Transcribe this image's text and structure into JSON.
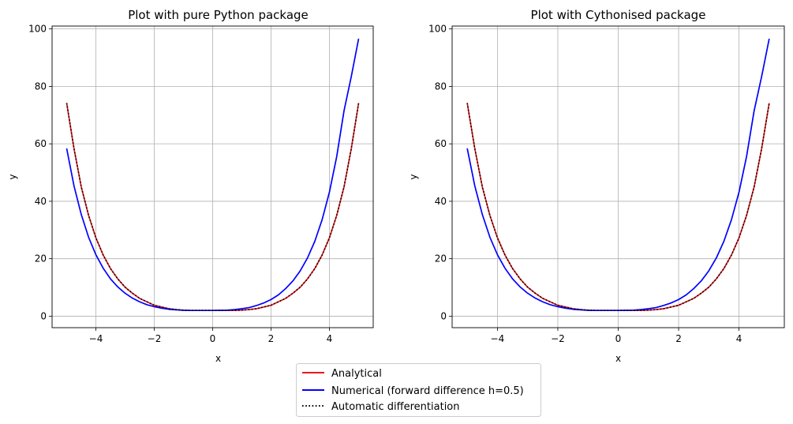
{
  "chart_data": [
    {
      "type": "line",
      "title": "Plot with pure Python package",
      "xlabel": "x",
      "ylabel": "y",
      "xlim": [
        -5.5,
        5.5
      ],
      "ylim": [
        -4,
        101
      ],
      "xticks": [
        -4,
        -2,
        0,
        2,
        4
      ],
      "yticks": [
        0,
        20,
        40,
        60,
        80,
        100
      ],
      "grid": true,
      "series": [
        {
          "name": "Analytical",
          "color": "#e41a1c",
          "style": "solid",
          "x": [
            -5,
            -4.75,
            -4.5,
            -4.25,
            -4,
            -3.75,
            -3.5,
            -3.25,
            -3,
            -2.75,
            -2.5,
            -2.25,
            -2,
            -1.75,
            -1.5,
            -1.25,
            -1,
            -0.75,
            -0.5,
            -0.25,
            0,
            0.25,
            0.5,
            0.75,
            1,
            1.25,
            1.5,
            1.75,
            2,
            2.25,
            2.5,
            2.75,
            3,
            3.25,
            3.5,
            3.75,
            4,
            4.25,
            4.5,
            4.75,
            5
          ],
          "y": [
            74.2,
            58.4,
            45.0,
            35.1,
            27.3,
            21.3,
            16.6,
            13.0,
            10.1,
            8.0,
            6.2,
            5.0,
            3.8,
            3.2,
            2.6,
            2.3,
            2.1,
            2.0,
            2.0,
            2.0,
            2.0,
            2.0,
            2.0,
            2.0,
            2.1,
            2.3,
            2.6,
            3.2,
            3.8,
            5.0,
            6.2,
            8.0,
            10.1,
            13.0,
            16.6,
            21.3,
            27.3,
            35.1,
            45.0,
            58.4,
            74.2
          ]
        },
        {
          "name": "Numerical (forward difference h=0.5)",
          "color": "#0000ff",
          "style": "solid",
          "x": [
            -5,
            -4.75,
            -4.5,
            -4.25,
            -4,
            -3.75,
            -3.5,
            -3.25,
            -3,
            -2.75,
            -2.5,
            -2.25,
            -2,
            -1.75,
            -1.5,
            -1.25,
            -1,
            -0.75,
            -0.5,
            -0.25,
            0,
            0.25,
            0.5,
            0.75,
            1,
            1.25,
            1.5,
            1.75,
            2,
            2.25,
            2.5,
            2.75,
            3,
            3.25,
            3.5,
            3.75,
            4,
            4.25,
            4.5,
            4.75,
            5
          ],
          "y": [
            58.4,
            45.4,
            35.4,
            27.5,
            21.4,
            16.7,
            13.0,
            10.2,
            8.0,
            6.3,
            5.0,
            4.0,
            3.3,
            2.8,
            2.4,
            2.2,
            2.05,
            2.0,
            2.0,
            2.0,
            2.0,
            2.05,
            2.1,
            2.3,
            2.6,
            3.0,
            3.7,
            4.6,
            5.8,
            7.4,
            9.6,
            12.3,
            15.8,
            20.3,
            26.1,
            33.6,
            43.2,
            55.6,
            71.5,
            83.5,
            96.6
          ]
        },
        {
          "name": "Automatic differentiation",
          "color": "#000000",
          "style": "dotted",
          "x": [
            -5,
            -4.75,
            -4.5,
            -4.25,
            -4,
            -3.75,
            -3.5,
            -3.25,
            -3,
            -2.75,
            -2.5,
            -2.25,
            -2,
            -1.75,
            -1.5,
            -1.25,
            -1,
            -0.75,
            -0.5,
            -0.25,
            0,
            0.25,
            0.5,
            0.75,
            1,
            1.25,
            1.5,
            1.75,
            2,
            2.25,
            2.5,
            2.75,
            3,
            3.25,
            3.5,
            3.75,
            4,
            4.25,
            4.5,
            4.75,
            5
          ],
          "y": [
            74.2,
            58.4,
            45.0,
            35.1,
            27.3,
            21.3,
            16.6,
            13.0,
            10.1,
            8.0,
            6.2,
            5.0,
            3.8,
            3.2,
            2.6,
            2.3,
            2.1,
            2.0,
            2.0,
            2.0,
            2.0,
            2.0,
            2.0,
            2.0,
            2.1,
            2.3,
            2.6,
            3.2,
            3.8,
            5.0,
            6.2,
            8.0,
            10.1,
            13.0,
            16.6,
            21.3,
            27.3,
            35.1,
            45.0,
            58.4,
            74.2
          ]
        }
      ]
    },
    {
      "type": "line",
      "title": "Plot with Cythonised package",
      "xlabel": "x",
      "ylabel": "y",
      "xlim": [
        -5.5,
        5.5
      ],
      "ylim": [
        -4,
        101
      ],
      "xticks": [
        -4,
        -2,
        0,
        2,
        4
      ],
      "yticks": [
        0,
        20,
        40,
        60,
        80,
        100
      ],
      "grid": true,
      "series": [
        {
          "name": "Analytical",
          "color": "#e41a1c",
          "style": "solid",
          "x": [
            -5,
            -4.75,
            -4.5,
            -4.25,
            -4,
            -3.75,
            -3.5,
            -3.25,
            -3,
            -2.75,
            -2.5,
            -2.25,
            -2,
            -1.75,
            -1.5,
            -1.25,
            -1,
            -0.75,
            -0.5,
            -0.25,
            0,
            0.25,
            0.5,
            0.75,
            1,
            1.25,
            1.5,
            1.75,
            2,
            2.25,
            2.5,
            2.75,
            3,
            3.25,
            3.5,
            3.75,
            4,
            4.25,
            4.5,
            4.75,
            5
          ],
          "y": [
            74.2,
            58.4,
            45.0,
            35.1,
            27.3,
            21.3,
            16.6,
            13.0,
            10.1,
            8.0,
            6.2,
            5.0,
            3.8,
            3.2,
            2.6,
            2.3,
            2.1,
            2.0,
            2.0,
            2.0,
            2.0,
            2.0,
            2.0,
            2.0,
            2.1,
            2.3,
            2.6,
            3.2,
            3.8,
            5.0,
            6.2,
            8.0,
            10.1,
            13.0,
            16.6,
            21.3,
            27.3,
            35.1,
            45.0,
            58.4,
            74.2
          ]
        },
        {
          "name": "Numerical (forward difference h=0.5)",
          "color": "#0000ff",
          "style": "solid",
          "x": [
            -5,
            -4.75,
            -4.5,
            -4.25,
            -4,
            -3.75,
            -3.5,
            -3.25,
            -3,
            -2.75,
            -2.5,
            -2.25,
            -2,
            -1.75,
            -1.5,
            -1.25,
            -1,
            -0.75,
            -0.5,
            -0.25,
            0,
            0.25,
            0.5,
            0.75,
            1,
            1.25,
            1.5,
            1.75,
            2,
            2.25,
            2.5,
            2.75,
            3,
            3.25,
            3.5,
            3.75,
            4,
            4.25,
            4.5,
            4.75,
            5
          ],
          "y": [
            58.4,
            45.4,
            35.4,
            27.5,
            21.4,
            16.7,
            13.0,
            10.2,
            8.0,
            6.3,
            5.0,
            4.0,
            3.3,
            2.8,
            2.4,
            2.2,
            2.05,
            2.0,
            2.0,
            2.0,
            2.0,
            2.05,
            2.1,
            2.3,
            2.6,
            3.0,
            3.7,
            4.6,
            5.8,
            7.4,
            9.6,
            12.3,
            15.8,
            20.3,
            26.1,
            33.6,
            43.2,
            55.6,
            71.5,
            83.5,
            96.6
          ]
        },
        {
          "name": "Automatic differentiation",
          "color": "#000000",
          "style": "dotted",
          "x": [
            -5,
            -4.75,
            -4.5,
            -4.25,
            -4,
            -3.75,
            -3.5,
            -3.25,
            -3,
            -2.75,
            -2.5,
            -2.25,
            -2,
            -1.75,
            -1.5,
            -1.25,
            -1,
            -0.75,
            -0.5,
            -0.25,
            0,
            0.25,
            0.5,
            0.75,
            1,
            1.25,
            1.5,
            1.75,
            2,
            2.25,
            2.5,
            2.75,
            3,
            3.25,
            3.5,
            3.75,
            4,
            4.25,
            4.5,
            4.75,
            5
          ],
          "y": [
            74.2,
            58.4,
            45.0,
            35.1,
            27.3,
            21.3,
            16.6,
            13.0,
            10.1,
            8.0,
            6.2,
            5.0,
            3.8,
            3.2,
            2.6,
            2.3,
            2.1,
            2.0,
            2.0,
            2.0,
            2.0,
            2.0,
            2.0,
            2.0,
            2.1,
            2.3,
            2.6,
            3.2,
            3.8,
            5.0,
            6.2,
            8.0,
            10.1,
            13.0,
            16.6,
            21.3,
            27.3,
            35.1,
            45.0,
            58.4,
            74.2
          ]
        }
      ]
    }
  ],
  "legend": {
    "placement": "bottom-center",
    "entries": [
      {
        "label": "Analytical",
        "color": "#e41a1c",
        "style": "solid"
      },
      {
        "label": "Numerical (forward difference h=0.5)",
        "color": "#0000ff",
        "style": "solid"
      },
      {
        "label": "Automatic differentiation",
        "color": "#000000",
        "style": "dotted"
      }
    ]
  }
}
